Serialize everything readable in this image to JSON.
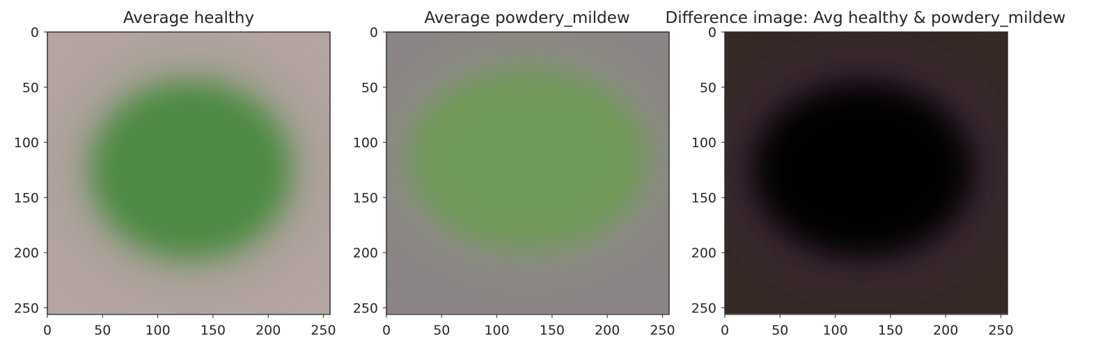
{
  "chart_data": [
    {
      "type": "heatmap",
      "title": "Average healthy",
      "xlabel": "",
      "ylabel": "",
      "xlim": [
        0,
        256
      ],
      "ylim": [
        256,
        0
      ],
      "xticks": [
        0,
        50,
        100,
        150,
        200,
        250
      ],
      "yticks": [
        0,
        50,
        100,
        150,
        200,
        250
      ],
      "grid": false,
      "image": {
        "background": "#b4a4a2",
        "leaf": "#4a8a3f",
        "halo": "#8c9a7c",
        "leaf_center": [
          130,
          125
        ],
        "leaf_radius": [
          90,
          80
        ]
      }
    },
    {
      "type": "heatmap",
      "title": "Average powdery_mildew",
      "xlabel": "",
      "ylabel": "",
      "xlim": [
        0,
        256
      ],
      "ylim": [
        256,
        0
      ],
      "xticks": [
        0,
        50,
        100,
        150,
        200,
        250
      ],
      "yticks": [
        0,
        50,
        100,
        150,
        200,
        250
      ],
      "grid": false,
      "image": {
        "background": "#8a8484",
        "leaf": "#6e9a55",
        "halo": "#8d9482",
        "leaf_center": [
          128,
          115
        ],
        "leaf_radius": [
          108,
          82
        ]
      }
    },
    {
      "type": "heatmap",
      "title": "Difference image: Avg healthy & powdery_mildew",
      "xlabel": "",
      "ylabel": "",
      "xlim": [
        0,
        256
      ],
      "ylim": [
        256,
        0
      ],
      "xticks": [
        0,
        50,
        100,
        150,
        200,
        250
      ],
      "yticks": [
        0,
        50,
        100,
        150,
        200,
        250
      ],
      "grid": false,
      "image": {
        "background": "#362a26",
        "leaf": "#000000",
        "halo": "#3a2340",
        "leaf_center": [
          125,
          125
        ],
        "leaf_radius": [
          100,
          80
        ]
      }
    }
  ]
}
